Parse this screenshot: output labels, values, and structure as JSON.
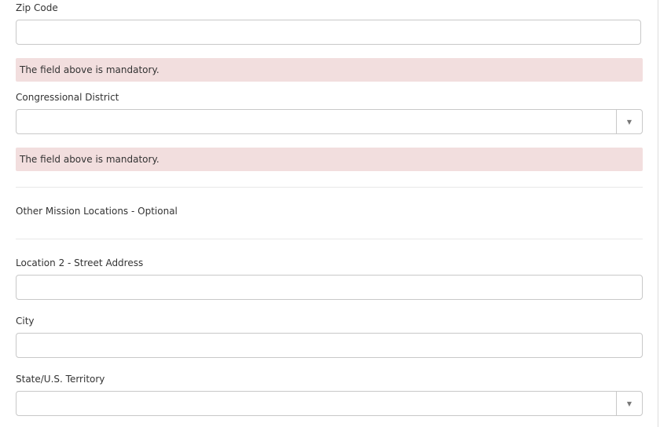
{
  "zip": {
    "label": "Zip Code",
    "value": "",
    "error": "The field above is mandatory."
  },
  "district": {
    "label": "Congressional District",
    "value": "",
    "error": "The field above is mandatory."
  },
  "section": {
    "title": "Other Mission Locations - Optional"
  },
  "location2": {
    "label": "Location 2 - Street Address",
    "value": ""
  },
  "city": {
    "label": "City",
    "value": ""
  },
  "state": {
    "label": "State/U.S. Territory",
    "value": ""
  },
  "icons": {
    "dropdown": "caret-down-icon"
  },
  "colors": {
    "error_bg": "#f2dede"
  }
}
